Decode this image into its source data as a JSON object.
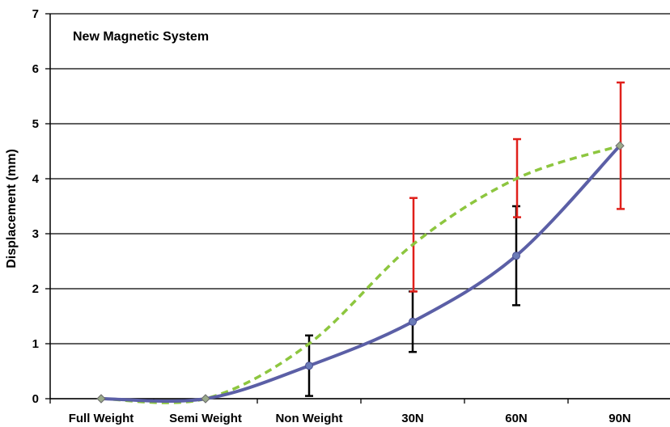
{
  "chart_data": {
    "type": "line",
    "title": "New Magnetic System",
    "ylabel": "Displacement (mm)",
    "xlabel": "",
    "categories": [
      "Full Weight",
      "Semi Weight",
      "Non Weight",
      "30N",
      "60N",
      "90N"
    ],
    "ylim": [
      0,
      7
    ],
    "yticks": [
      "0",
      "1",
      "2",
      "3",
      "4",
      "5",
      "6",
      "7"
    ],
    "grid": true,
    "series": [
      {
        "values": [
          0,
          0,
          0.6,
          1.4,
          2.6,
          4.6
        ],
        "error_low": [
          null,
          null,
          0.05,
          0.85,
          1.7,
          null
        ],
        "error_high": [
          null,
          null,
          1.15,
          1.95,
          3.5,
          null
        ],
        "color": "#5b5fa6",
        "marker_color": "#6b7bb8",
        "line_style": "solid",
        "error_color": "#000000"
      },
      {
        "values": [
          0,
          0,
          1.0,
          2.8,
          4.0,
          4.6
        ],
        "error_low": [
          null,
          null,
          null,
          1.95,
          3.3,
          3.45
        ],
        "error_high": [
          null,
          null,
          null,
          3.65,
          4.72,
          5.75
        ],
        "color": "#8dc63f",
        "marker_color": "#9aaa8a",
        "line_style": "dashed",
        "error_color": "#e0201b"
      }
    ]
  }
}
